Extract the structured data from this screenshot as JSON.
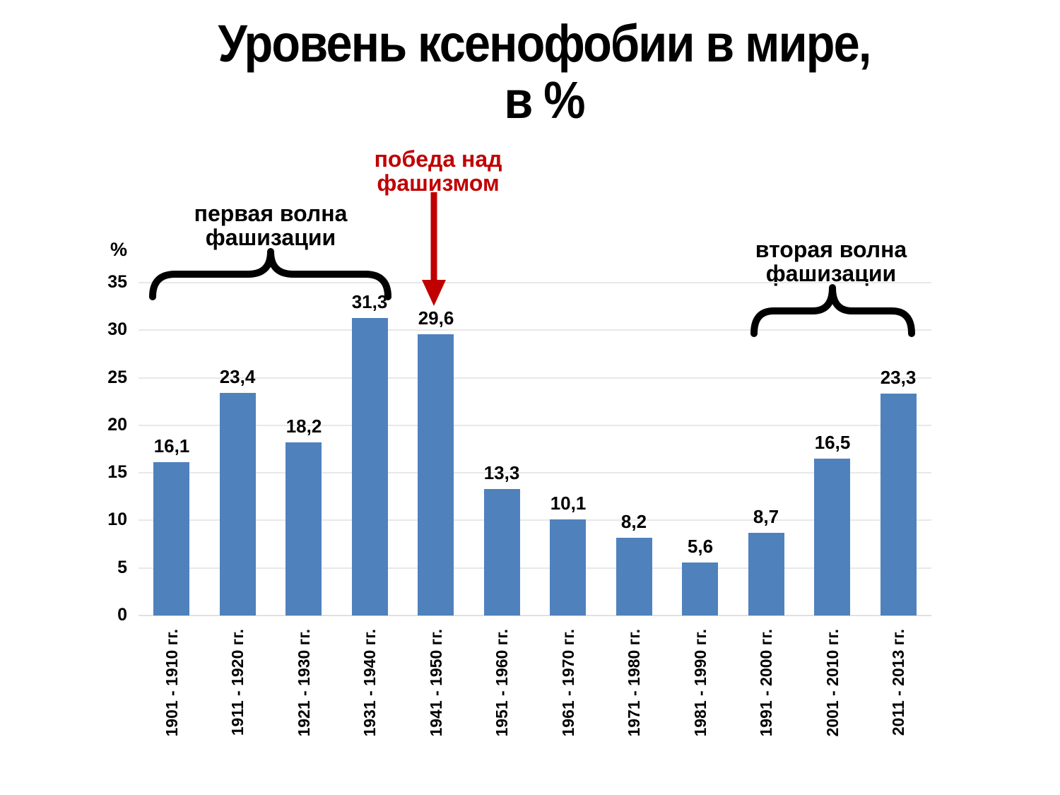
{
  "title": {
    "line1": "Уровень ксенофобии в мире,",
    "line2": "в %"
  },
  "chart_data": {
    "type": "bar",
    "title": "Уровень ксенофобии в мире, в %",
    "categories": [
      "1901 - 1910 гг.",
      "1911 - 1920 гг.",
      "1921 - 1930 гг.",
      "1931 - 1940 гг.",
      "1941 - 1950 гг.",
      "1951 - 1960 гг.",
      "1961 - 1970 гг.",
      "1971 - 1980 гг.",
      "1981 - 1990 гг.",
      "1991 - 2000 гг.",
      "2001 - 2010 гг.",
      "2011 - 2013 гг."
    ],
    "values": [
      16.1,
      23.4,
      18.2,
      31.3,
      29.6,
      13.3,
      10.1,
      8.2,
      5.6,
      8.7,
      16.5,
      23.3
    ],
    "value_labels": [
      "16,1",
      "23,4",
      "18,2",
      "31,3",
      "29,6",
      "13,3",
      "10,1",
      "8,2",
      "5,6",
      "8,7",
      "16,5",
      "23,3"
    ],
    "xlabel": "",
    "ylabel": "%",
    "yticks": [
      0,
      5,
      10,
      15,
      20,
      25,
      30,
      35
    ],
    "ylim": [
      0,
      35
    ],
    "grid": true,
    "legend_position": "none",
    "bar_color": "#4F81BD",
    "gridline_color": "#E8E8E8",
    "axis_line_color": "#E0E0E0"
  },
  "annotations": {
    "first_wave": {
      "line1": "первая волна",
      "line2": "фашизации",
      "color": "#000000"
    },
    "victory": {
      "line1": "победа над",
      "line2": "фашизмом",
      "color": "#C00000"
    },
    "second_wave": {
      "line1": "вторая волна",
      "line2": "фашизации",
      "color": "#000000"
    }
  }
}
